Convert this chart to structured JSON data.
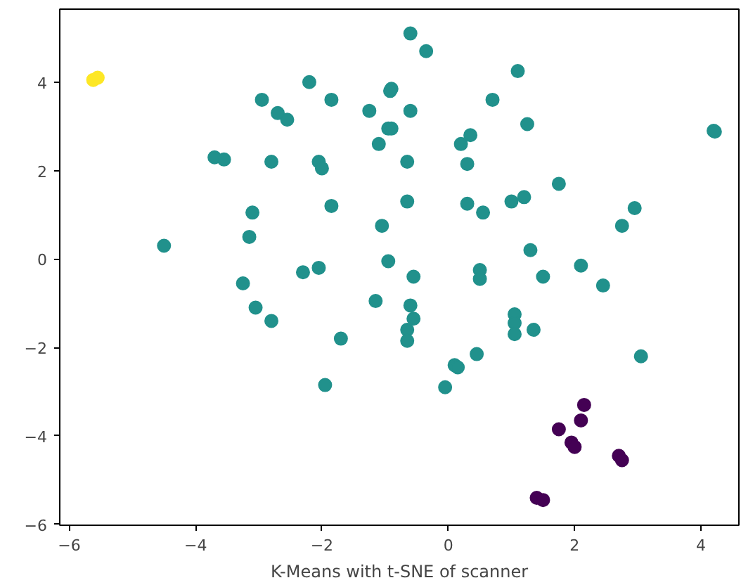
{
  "chart_data": {
    "type": "scatter",
    "xlabel": "K-Means with t-SNE of scanner",
    "xlim": [
      -6.15,
      4.6
    ],
    "ylim": [
      -6.02,
      5.65
    ],
    "xticks": [
      -6,
      -4,
      -2,
      0,
      2,
      4
    ],
    "yticks": [
      -6,
      -4,
      -2,
      0,
      2,
      4
    ],
    "grid": false,
    "marker": "circle",
    "series": [
      {
        "color": "#21918c",
        "x": [
          -4.5,
          -3.7,
          -3.55,
          -3.1,
          -3.15,
          -3.25,
          -3.05,
          -2.8,
          -2.95,
          -2.7,
          -2.55,
          -2.8,
          -2.2,
          -1.85,
          -2.05,
          -2.0,
          -1.85,
          -2.05,
          -2.3,
          -1.7,
          -1.95,
          -1.25,
          -0.9,
          -0.92,
          -0.95,
          -0.9,
          -1.1,
          -0.65,
          -0.6,
          -0.65,
          -1.05,
          -0.95,
          -0.55,
          -1.15,
          -0.6,
          -0.55,
          -0.65,
          -0.65,
          -0.6,
          -0.35,
          0.1,
          0.15,
          -0.05,
          0.45,
          0.2,
          0.35,
          0.3,
          0.7,
          0.3,
          0.55,
          1.0,
          1.2,
          0.5,
          0.5,
          1.05,
          1.05,
          1.05,
          1.35,
          1.5,
          1.3,
          1.25,
          1.1,
          1.75,
          2.1,
          2.45,
          2.75,
          2.95,
          3.05,
          4.2,
          4.22
        ],
        "values": [
          0.3,
          2.3,
          2.25,
          1.05,
          0.5,
          -0.55,
          -1.1,
          -1.4,
          3.6,
          3.3,
          3.15,
          2.2,
          4.0,
          3.6,
          2.2,
          2.05,
          1.2,
          -0.2,
          -0.3,
          -1.8,
          -2.85,
          3.35,
          3.85,
          3.8,
          2.95,
          2.95,
          2.6,
          2.2,
          3.35,
          1.3,
          0.75,
          -0.05,
          -0.4,
          -0.95,
          -1.05,
          -1.35,
          -1.6,
          -1.85,
          5.1,
          4.7,
          -2.4,
          -2.45,
          -2.9,
          -2.15,
          2.6,
          2.8,
          2.15,
          3.6,
          1.25,
          1.05,
          1.3,
          1.4,
          -0.25,
          -0.45,
          -1.25,
          -1.45,
          -1.7,
          -1.6,
          -0.4,
          0.2,
          3.05,
          4.25,
          1.7,
          -0.15,
          -0.6,
          0.75,
          1.15,
          -2.2,
          2.9,
          2.88
        ]
      },
      {
        "color": "#440154",
        "x": [
          2.15,
          2.1,
          1.75,
          1.95,
          2.0,
          2.7,
          2.75,
          1.4,
          1.5
        ],
        "values": [
          -3.3,
          -3.65,
          -3.85,
          -4.15,
          -4.25,
          -4.45,
          -4.55,
          -5.4,
          -5.45
        ]
      },
      {
        "color": "#fde725",
        "x": [
          -5.62,
          -5.55
        ],
        "values": [
          4.05,
          4.1
        ]
      }
    ]
  }
}
